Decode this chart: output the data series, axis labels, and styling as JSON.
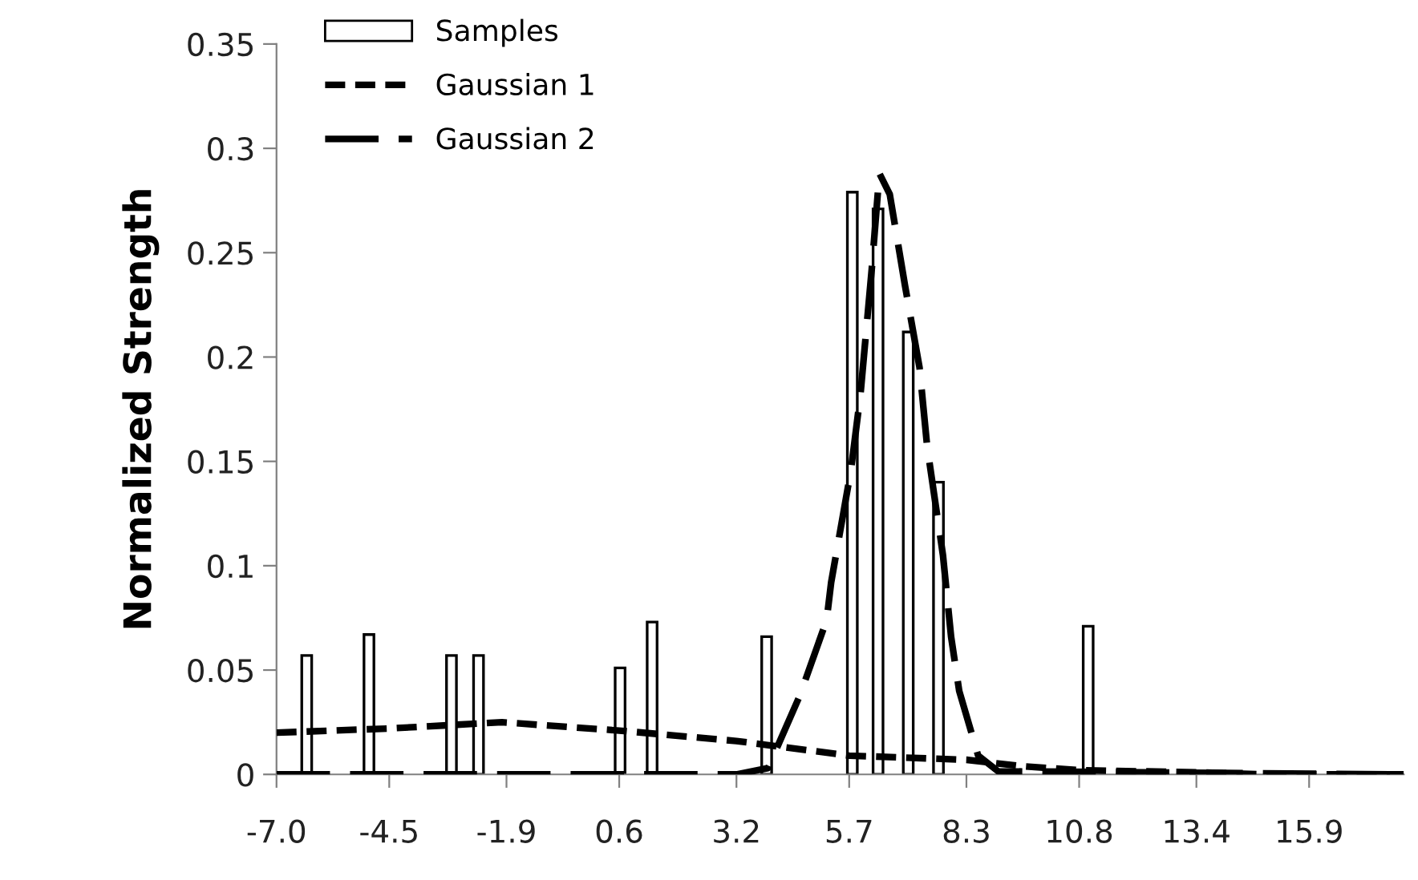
{
  "chart_data": {
    "type": "bar",
    "ylabel": "Normalized Strength",
    "xlim": [
      -7,
      18
    ],
    "xticks": [
      {
        "value": -7,
        "label": "-7.0"
      },
      -4.5,
      -1.9,
      0.6,
      3.2,
      5.7,
      8.3,
      10.8,
      13.4,
      15.9
    ],
    "ylim": [
      0,
      0.35
    ],
    "yticks": [
      0,
      0.05,
      0.1,
      0.15,
      0.2,
      0.25,
      0.3,
      0.35
    ],
    "grid": false,
    "legend": "top left",
    "series": [
      {
        "name": "Samples",
        "color": "#ffffff",
        "x": [
          -6.33,
          -4.95,
          -3.12,
          -2.52,
          0.62,
          1.33,
          3.87,
          5.77,
          6.34,
          7.01,
          7.68,
          11.0
        ],
        "values": [
          0.057,
          0.067,
          0.057,
          0.057,
          0.051,
          0.073,
          0.066,
          0.279,
          0.271,
          0.212,
          0.14,
          0.071
        ]
      },
      {
        "name": "Gaussian 1",
        "type": "line",
        "line_style": "dashed",
        "color": "#000000",
        "x": [
          -7,
          -4.5,
          -2,
          0.6,
          3.2,
          5.7,
          8.3,
          9.5,
          10.8,
          13.4,
          15,
          18
        ],
        "values": [
          0.02,
          0.022,
          0.025,
          0.021,
          0.016,
          0.009,
          0.007,
          0.004,
          0.002,
          0.001,
          0,
          0
        ]
      },
      {
        "name": "Gaussian 2",
        "type": "line",
        "line_style": "dashed",
        "color": "#000000",
        "x": [
          -7,
          3.2,
          3.9,
          4.61,
          5.2,
          5.3,
          5.74,
          5.95,
          6.2,
          6.37,
          6.6,
          6.94,
          7.26,
          7.43,
          7.78,
          7.96,
          8.14,
          8.56,
          9.0,
          18
        ],
        "values": [
          0,
          0,
          0.003,
          0.038,
          0.074,
          0.092,
          0.146,
          0.182,
          0.242,
          0.288,
          0.278,
          0.234,
          0.195,
          0.157,
          0.105,
          0.066,
          0.04,
          0.009,
          0.0015,
          0
        ]
      }
    ]
  }
}
